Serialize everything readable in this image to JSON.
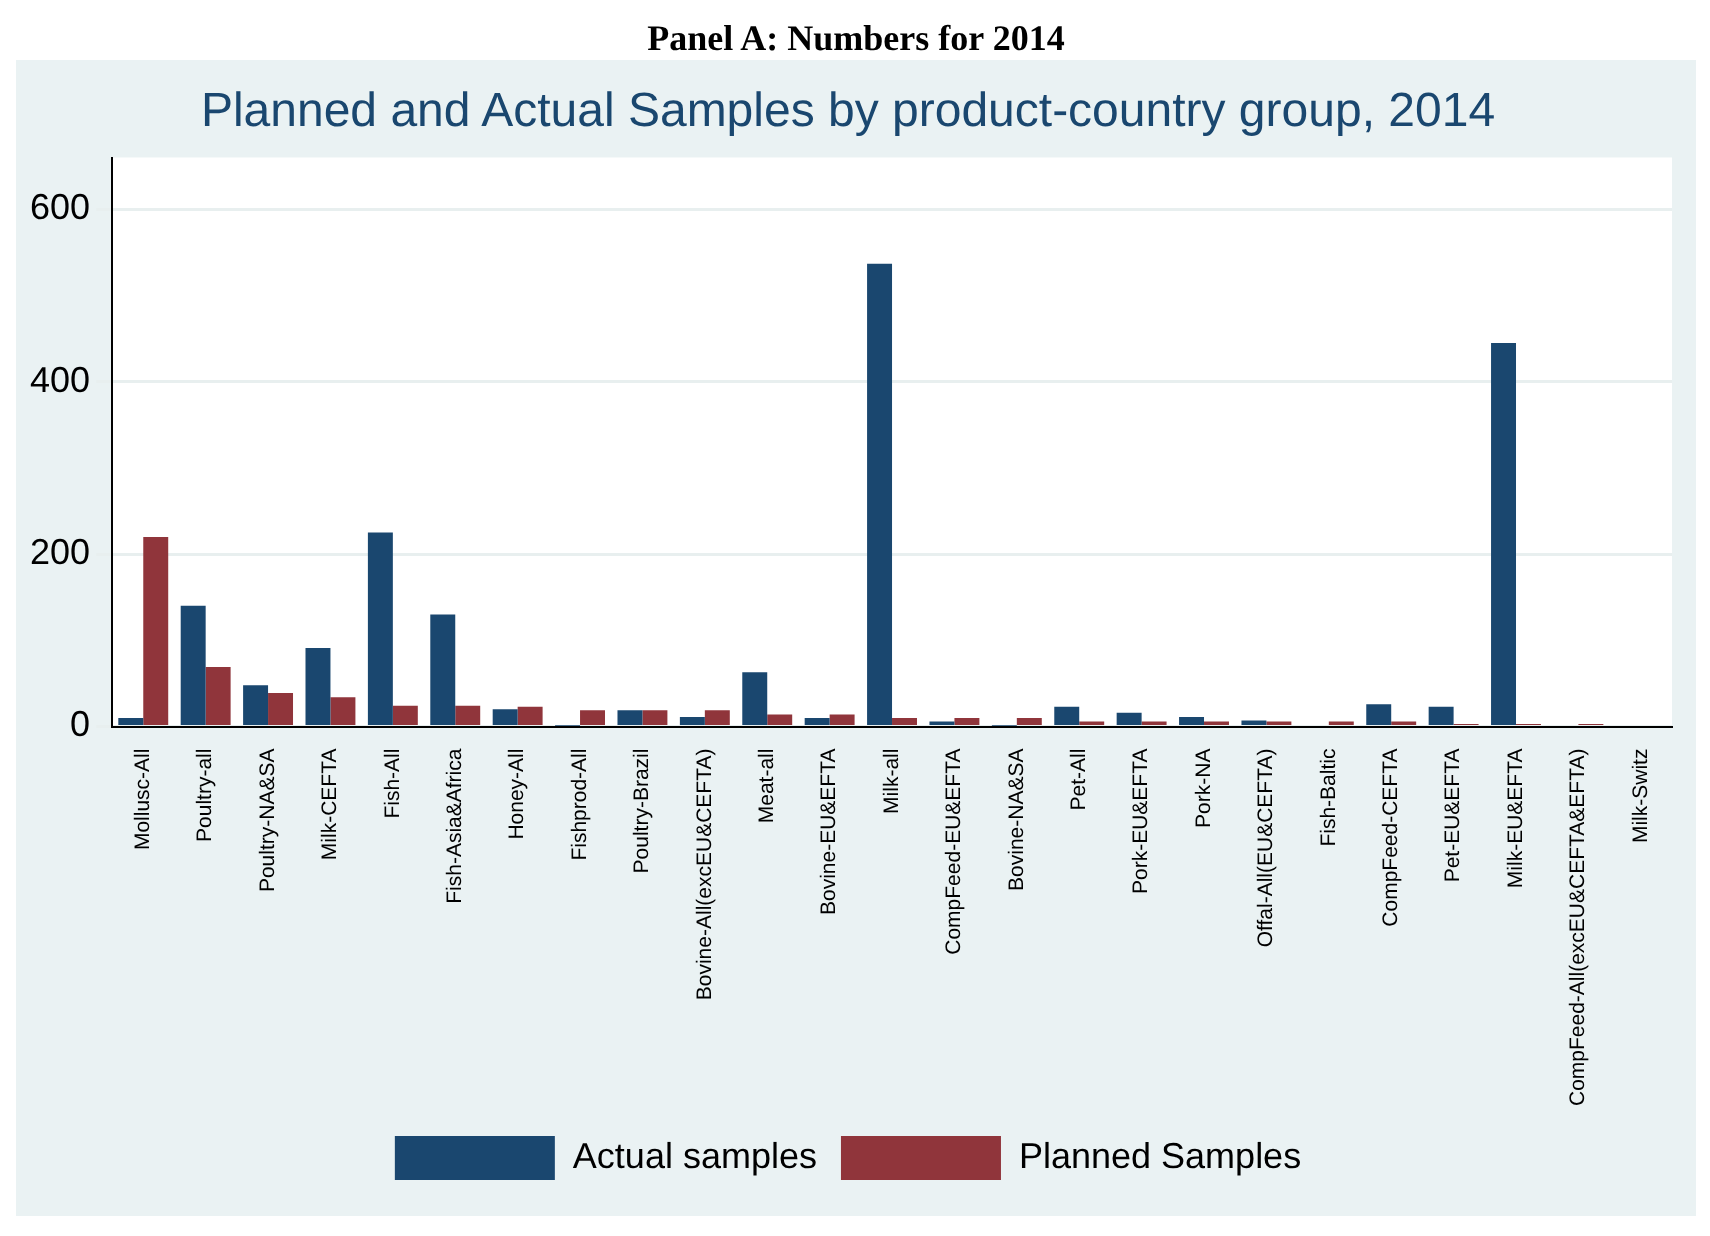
{
  "chart_data": {
    "type": "bar",
    "title": "Planned and Actual Samples by product-country group, 2014",
    "annotations": [
      "Panel A: Numbers for 2014"
    ],
    "categories": [
      "Mollusc-All",
      "Poultry-all",
      "Poultry-NA&SA",
      "Milk-CEFTA",
      "Fish-All",
      "Fish-Asia&Africa",
      "Honey-All",
      "Fishprod-All",
      "Poultry-Brazil",
      "Bovine-All(excEU&CEFTA)",
      "Meat-all",
      "Bovine-EU&EFTA",
      "Milk-all",
      "CompFeed-EU&EFTA",
      "Bovine-NA&SA",
      "Pet-All",
      "Pork-EU&EFTA",
      "Pork-NA",
      "Offal-All(EU&CEFTA)",
      "Fish-Baltic",
      "CompFeed-CEFTA",
      "Pet-EU&EFTA",
      "Milk-EU&EFTA",
      "CompFeed-All(excEU&CEFTA&EFTA)",
      "Milk-Switz"
    ],
    "series": [
      {
        "name": "Actual samples",
        "color": "#1a476f",
        "values": [
          10,
          140,
          48,
          91,
          225,
          130,
          20,
          1,
          19,
          11,
          63,
          10,
          537,
          6,
          1,
          23,
          16,
          11,
          7,
          0,
          26,
          23,
          445,
          0,
          0
        ]
      },
      {
        "name": "Planned Samples",
        "color": "#90353b",
        "values": [
          220,
          69,
          39,
          34,
          24,
          24,
          23,
          19,
          19,
          19,
          14,
          14,
          10,
          10,
          10,
          6,
          6,
          6,
          6,
          6,
          6,
          3,
          3,
          3,
          0
        ]
      }
    ],
    "ylim": [
      0,
      660
    ],
    "yticks": [
      0,
      200,
      400,
      600
    ],
    "grid": "y",
    "legend": "bottom"
  }
}
